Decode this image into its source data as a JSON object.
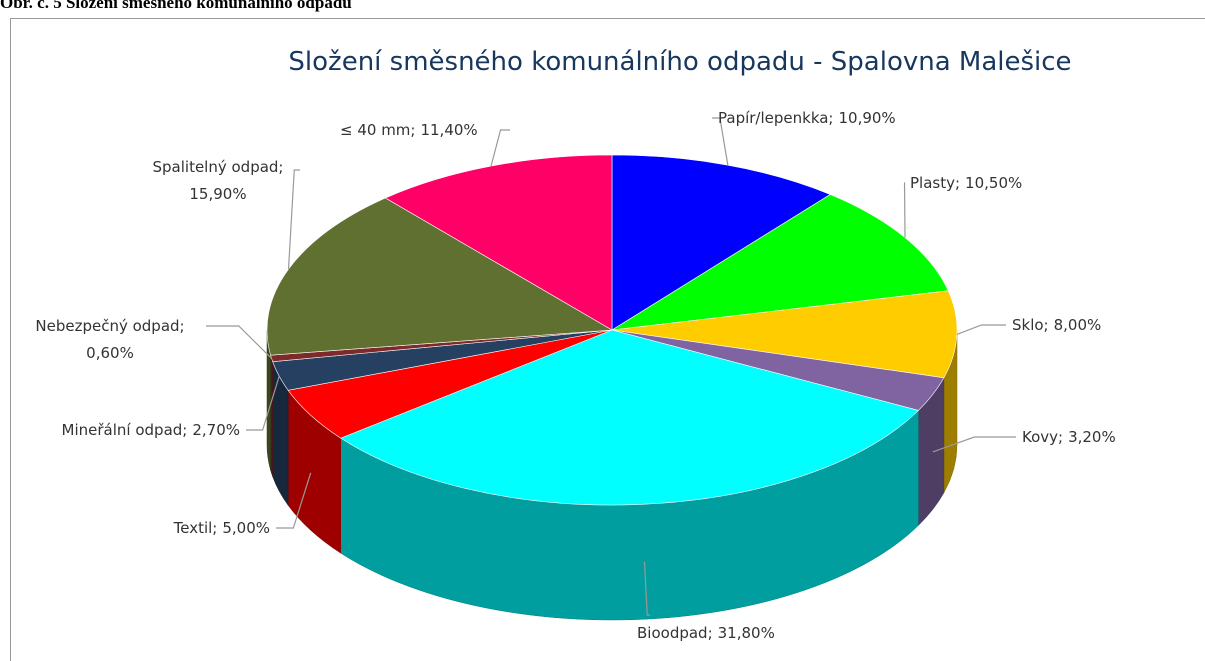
{
  "caption": "Obr. č. 5 Složení směsného komunálního odpadu",
  "chart_data": {
    "type": "pie",
    "title": "Složení směsného komunálního odpadu - Spalovna Malešice",
    "categories": [
      "Papír/lepenkka;",
      "Plasty;",
      "Sklo;",
      "Kovy;",
      "Bioodpad;",
      "Textil;",
      "Mineřální odpad;",
      "Nebezpečný odpad;",
      "Spalitelný odpad;",
      "≤ 40 mm;"
    ],
    "values": [
      10.9,
      10.5,
      8.0,
      3.2,
      31.8,
      5.0,
      2.7,
      0.6,
      15.9,
      11.4
    ],
    "value_labels": [
      "10,90%",
      "10,50%",
      "8,00%",
      "3,20%",
      "31,80%",
      "5,00%",
      "2,70%",
      "0,60%",
      "15,90%",
      "11,40%"
    ],
    "colors": [
      "#0000ff",
      "#00ff00",
      "#ffcc00",
      "#8064a2",
      "#00ffff",
      "#ff0000",
      "#254061",
      "#7f2a2a",
      "#607030",
      "#ff0066"
    ]
  }
}
